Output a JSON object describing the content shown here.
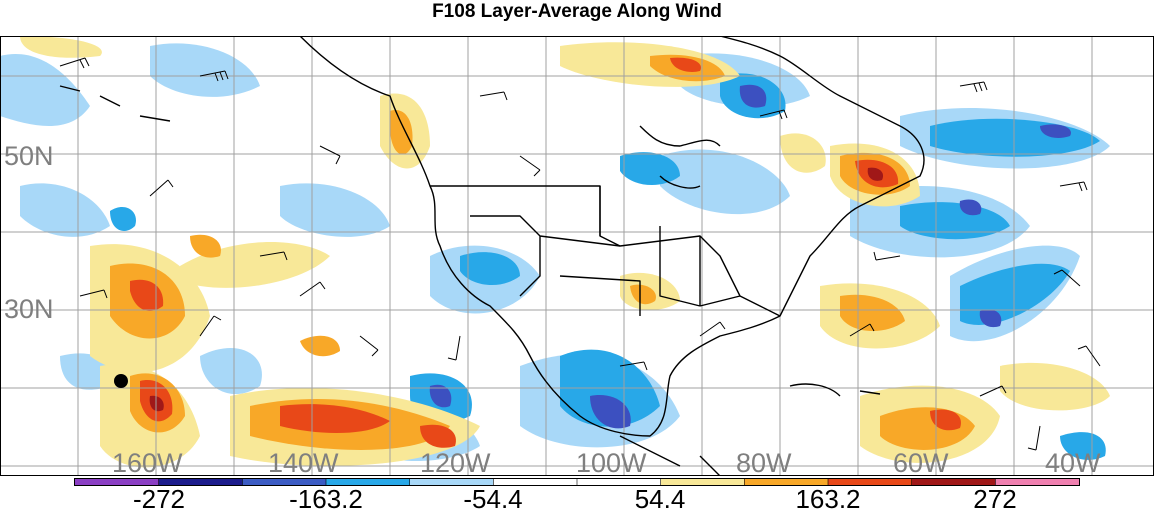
{
  "title": "F108 Layer-Average Along Wind",
  "lat_labels": [
    "50N",
    "30N"
  ],
  "lon_labels": [
    "160W",
    "140W",
    "120W",
    "100W",
    "80W",
    "60W",
    "40W"
  ],
  "colorbar": {
    "colors": [
      "#8b3fc4",
      "#1c1c8c",
      "#3c5cc4",
      "#28a8e8",
      "#a8d8f8",
      "#ffffff",
      "#ffffff",
      "#f8e898",
      "#f8a828",
      "#e84818",
      "#a01818",
      "#f080b0"
    ],
    "tick_labels": [
      "-272",
      "-163.2",
      "-54.4",
      "54.4",
      "163.2",
      "272"
    ]
  },
  "fill_colors": {
    "strong_negative": "#3c50c0",
    "moderate_negative": "#28a8e8",
    "weak_negative": "#a8d8f8",
    "weak_positive": "#f8e898",
    "moderate_positive": "#f8a828",
    "strong_positive": "#e84818",
    "extreme_positive": "#a01818"
  },
  "marker": "station-dot"
}
